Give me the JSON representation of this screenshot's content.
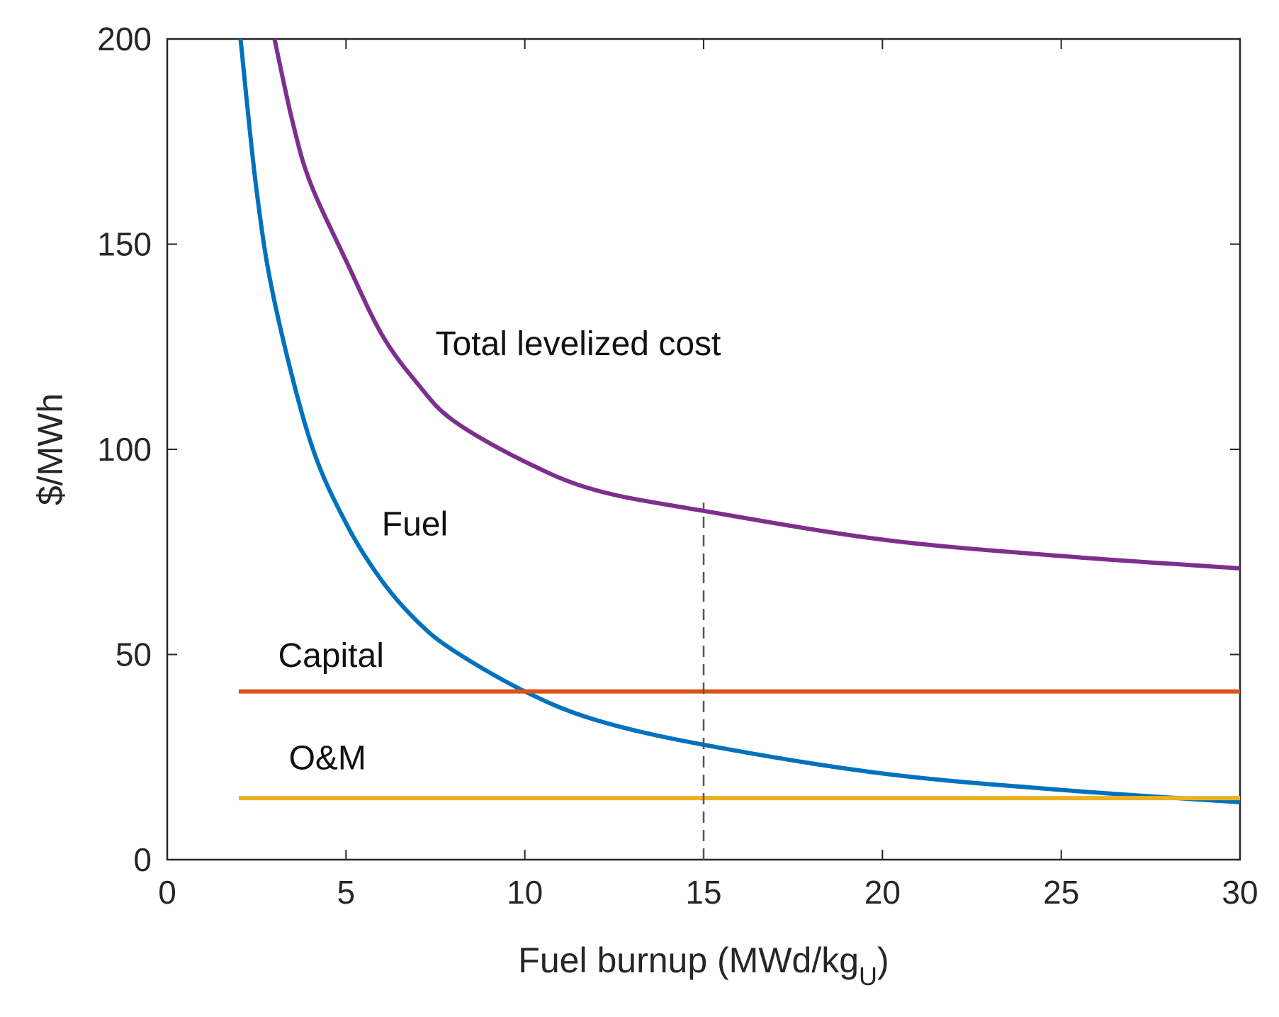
{
  "chart_data": {
    "type": "line",
    "title": "",
    "xlabel": "Fuel burnup (MWd/kg",
    "xlabel_subscript": "U",
    "xlabel_close": ")",
    "ylabel": "$/MWh",
    "xlim": [
      0,
      30
    ],
    "ylim": [
      0,
      200
    ],
    "xticks": [
      0,
      5,
      10,
      15,
      20,
      25,
      30
    ],
    "yticks": [
      0,
      50,
      100,
      150,
      200
    ],
    "grid": false,
    "series": [
      {
        "name": "Total levelized cost",
        "color": "#7E2F8E",
        "x": [
          3,
          3.5,
          4,
          5,
          6,
          7,
          8,
          10,
          12,
          15,
          20,
          25,
          30
        ],
        "y": [
          200,
          180,
          165,
          146,
          128,
          116,
          107,
          97,
          90,
          85,
          78,
          74,
          71
        ]
      },
      {
        "name": "Fuel",
        "color": "#0072BD",
        "x": [
          2.05,
          2.5,
          3,
          4,
          5,
          6,
          7,
          8,
          10,
          12,
          15,
          20,
          25,
          30
        ],
        "y": [
          200,
          163,
          136,
          102,
          82,
          68,
          58,
          51,
          41,
          34,
          28,
          21,
          17,
          14
        ]
      },
      {
        "name": "Capital",
        "color": "#D95319",
        "x": [
          2,
          30
        ],
        "y": [
          41,
          41
        ]
      },
      {
        "name": "O&M",
        "color": "#EDB120",
        "x": [
          2,
          30
        ],
        "y": [
          15,
          15
        ]
      }
    ],
    "reference_line": {
      "x": 15,
      "y_range": [
        0,
        87
      ],
      "style": "dashed",
      "color": "#555555"
    },
    "annotations": [
      {
        "text": "Total levelized cost",
        "x": 7.5,
        "y": 123
      },
      {
        "text": "Fuel",
        "x": 6.0,
        "y": 79
      },
      {
        "text": "Capital",
        "x": 3.1,
        "y": 47
      },
      {
        "text": "O&M",
        "x": 3.4,
        "y": 22
      }
    ]
  }
}
